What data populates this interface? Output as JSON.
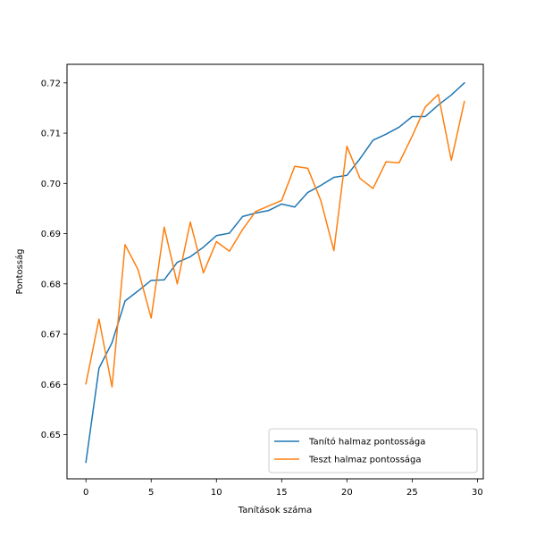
{
  "chart_data": {
    "type": "line",
    "title": "",
    "xlabel": "Tanítások száma",
    "ylabel": "Pontosság",
    "xlim": [
      -1.45,
      30.45
    ],
    "ylim": [
      0.6412,
      0.7237
    ],
    "xticks": [
      0,
      5,
      10,
      15,
      20,
      25,
      30
    ],
    "yticks": [
      0.65,
      0.66,
      0.67,
      0.68,
      0.69,
      0.7,
      0.71,
      0.72
    ],
    "ytick_labels": [
      "0.65",
      "0.66",
      "0.67",
      "0.68",
      "0.69",
      "0.70",
      "0.71",
      "0.72"
    ],
    "grid": false,
    "legend_position": "lower-right",
    "x": [
      0,
      1,
      2,
      3,
      4,
      5,
      6,
      7,
      8,
      9,
      10,
      11,
      12,
      13,
      14,
      15,
      16,
      17,
      18,
      19,
      20,
      21,
      22,
      23,
      24,
      25,
      26,
      27,
      28,
      29
    ],
    "series": [
      {
        "name": "Tanító halmaz pontossága",
        "color": "#1f77b4",
        "values": [
          0.6445,
          0.6632,
          0.6683,
          0.6766,
          0.6786,
          0.6807,
          0.6808,
          0.6843,
          0.6854,
          0.6873,
          0.6896,
          0.6901,
          0.6934,
          0.6941,
          0.6946,
          0.6959,
          0.6953,
          0.6982,
          0.6996,
          0.7012,
          0.7016,
          0.7049,
          0.7086,
          0.7098,
          0.7112,
          0.7133,
          0.7133,
          0.7156,
          0.7176,
          0.72
        ]
      },
      {
        "name": "Teszt halmaz pontossága",
        "color": "#ff7f0e",
        "values": [
          0.6601,
          0.673,
          0.6595,
          0.6878,
          0.6828,
          0.6732,
          0.6913,
          0.68,
          0.6923,
          0.6822,
          0.6884,
          0.6865,
          0.6908,
          0.6944,
          0.6955,
          0.6966,
          0.7034,
          0.703,
          0.6966,
          0.6866,
          0.7074,
          0.701,
          0.699,
          0.7043,
          0.7041,
          0.7094,
          0.7152,
          0.7177,
          0.7046,
          0.7163
        ]
      }
    ]
  }
}
